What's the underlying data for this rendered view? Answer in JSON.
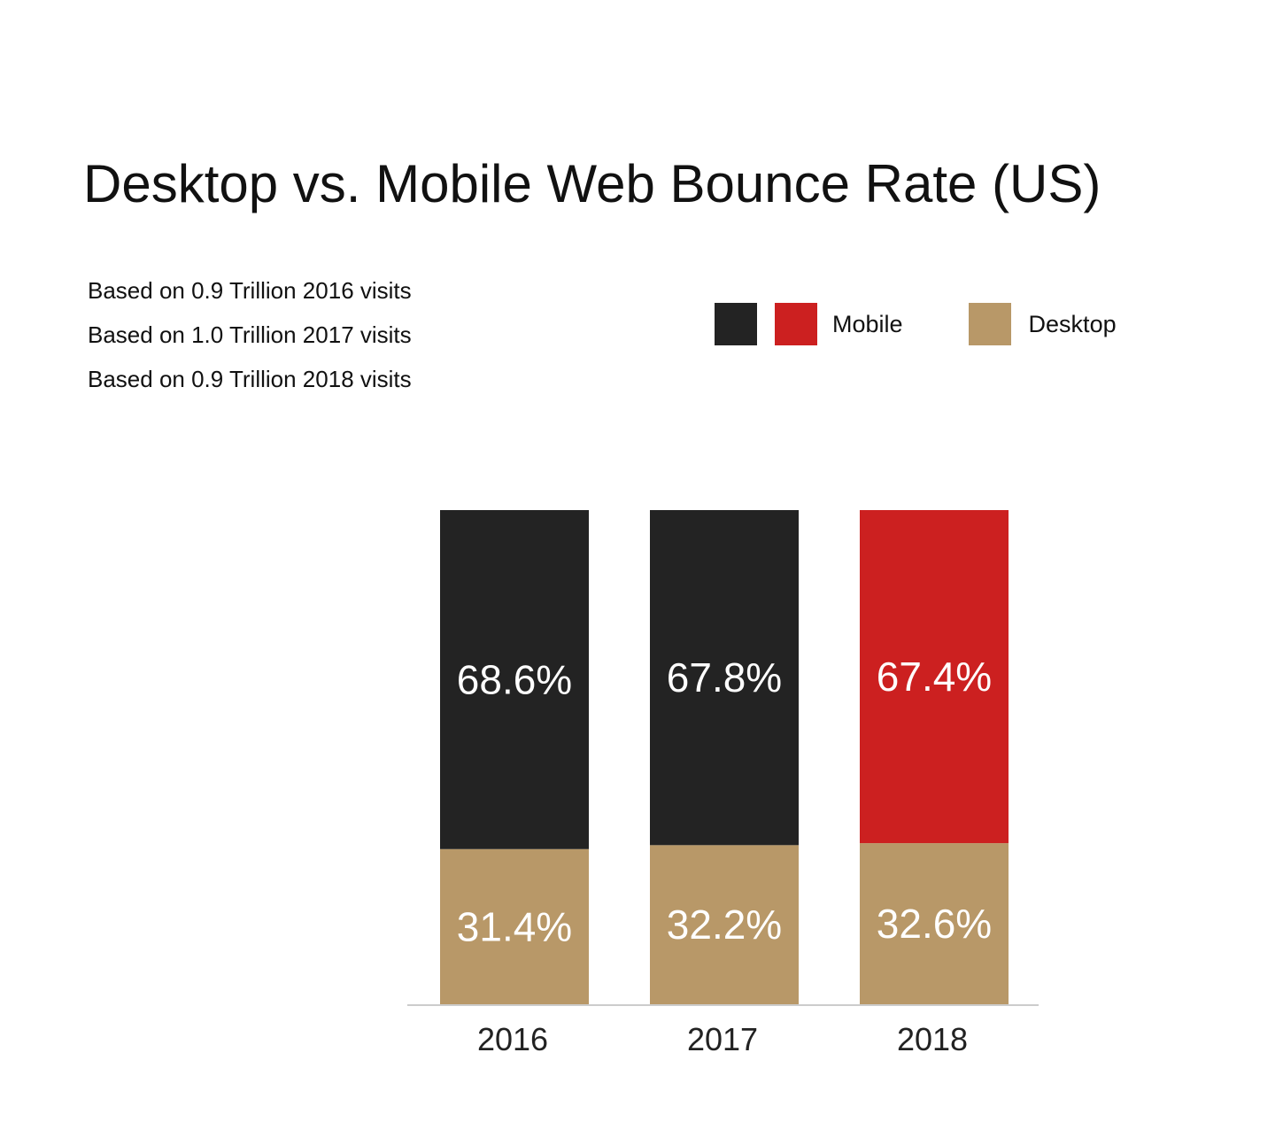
{
  "title": "Desktop vs. Mobile Web Bounce Rate (US)",
  "notes": [
    "Based on 0.9 Trillion 2016 visits",
    "Based on 1.0 Trillion 2017 visits",
    "Based on 0.9 Trillion 2018 visits"
  ],
  "legend": {
    "mobile_label": "Mobile",
    "desktop_label": "Desktop"
  },
  "colors": {
    "mobile_early": "#232323",
    "mobile_2018": "#cc2020",
    "desktop": "#b89868",
    "axis": "#cccccc"
  },
  "chart_data": {
    "type": "bar",
    "stacked": true,
    "categories": [
      "2016",
      "2017",
      "2018"
    ],
    "series": [
      {
        "name": "Desktop",
        "values": [
          31.4,
          32.2,
          32.6
        ],
        "labels": [
          "31.4%",
          "32.2%",
          "32.6%"
        ],
        "colors": [
          "#b89868",
          "#b89868",
          "#b89868"
        ]
      },
      {
        "name": "Mobile",
        "values": [
          68.6,
          67.8,
          67.4
        ],
        "labels": [
          "68.6%",
          "67.8%",
          "67.4%"
        ],
        "colors": [
          "#232323",
          "#232323",
          "#cc2020"
        ]
      }
    ],
    "ylim": [
      0,
      100
    ],
    "grid": false,
    "legend_position": "top-right"
  }
}
